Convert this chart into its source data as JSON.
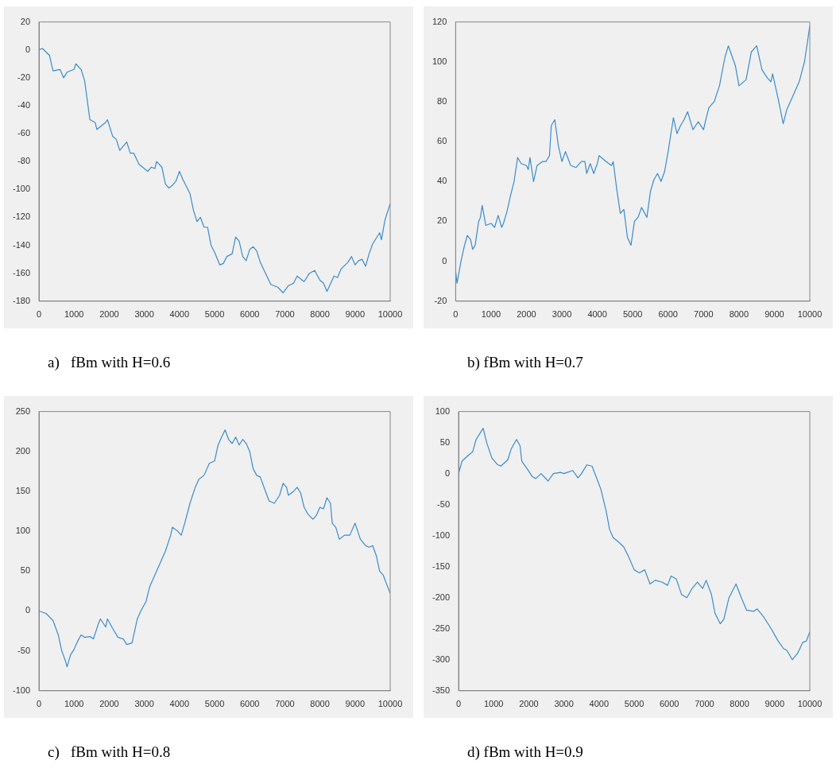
{
  "chart_data": [
    {
      "type": "line",
      "title": "a)   fBm with H=0.6",
      "color": "#3a8ccc",
      "xlim": [
        0,
        10000
      ],
      "xticks": [
        0,
        1000,
        2000,
        3000,
        4000,
        5000,
        6000,
        7000,
        8000,
        9000,
        10000
      ],
      "ylim": [
        -180,
        20
      ],
      "yticks": [
        -180,
        -160,
        -140,
        -120,
        -100,
        -80,
        -60,
        -40,
        -20,
        0,
        20
      ],
      "x": [
        0,
        100,
        300,
        400,
        600,
        700,
        800,
        1000,
        1050,
        1200,
        1300,
        1450,
        1600,
        1650,
        1900,
        1950,
        2100,
        2200,
        2300,
        2500,
        2600,
        2700,
        2850,
        2950,
        3100,
        3200,
        3300,
        3350,
        3500,
        3600,
        3700,
        3800,
        3900,
        4000,
        4100,
        4200,
        4300,
        4400,
        4500,
        4600,
        4700,
        4800,
        4900,
        5000,
        5150,
        5250,
        5350,
        5500,
        5600,
        5700,
        5800,
        5900,
        6000,
        6100,
        6200,
        6300,
        6450,
        6600,
        6800,
        6950,
        7100,
        7250,
        7350,
        7550,
        7700,
        7850,
        8000,
        8100,
        8200,
        8400,
        8500,
        8600,
        8800,
        8900,
        9000,
        9100,
        9200,
        9300,
        9400,
        9500,
        9700,
        9750,
        9850,
        10000
      ],
      "values": [
        0,
        1,
        -4,
        -15,
        -14,
        -20,
        -16,
        -14,
        -10,
        -14,
        -22,
        -50,
        -52,
        -57,
        -52,
        -50,
        -62,
        -64,
        -72,
        -66,
        -74,
        -74,
        -82,
        -84,
        -87,
        -84,
        -85,
        -80,
        -84,
        -96,
        -99,
        -97,
        -94,
        -87,
        -93,
        -98,
        -103,
        -115,
        -123,
        -120,
        -127,
        -127,
        -140,
        -145,
        -154,
        -153,
        -148,
        -146,
        -134,
        -137,
        -148,
        -151,
        -143,
        -141,
        -144,
        -152,
        -160,
        -168,
        -170,
        -174,
        -169,
        -167,
        -162,
        -166,
        -160,
        -158,
        -165,
        -167,
        -173,
        -162,
        -163,
        -157,
        -152,
        -148,
        -154,
        -151,
        -150,
        -155,
        -146,
        -139,
        -131,
        -136,
        -122,
        -110
      ]
    },
    {
      "type": "line",
      "title": "b) fBm with H=0.7",
      "color": "#3a8ccc",
      "xlim": [
        0,
        10000
      ],
      "xticks": [
        0,
        1000,
        2000,
        3000,
        4000,
        5000,
        6000,
        7000,
        8000,
        9000,
        10000
      ],
      "ylim": [
        -20,
        120
      ],
      "yticks": [
        -20,
        0,
        20,
        40,
        60,
        80,
        100,
        120
      ],
      "x": [
        0,
        40,
        150,
        250,
        330,
        420,
        480,
        550,
        650,
        700,
        750,
        850,
        1000,
        1100,
        1200,
        1300,
        1350,
        1450,
        1550,
        1650,
        1750,
        1850,
        2000,
        2050,
        2100,
        2200,
        2300,
        2450,
        2550,
        2650,
        2700,
        2800,
        2900,
        3000,
        3100,
        3250,
        3400,
        3550,
        3650,
        3700,
        3800,
        3900,
        4000,
        4050,
        4250,
        4400,
        4450,
        4550,
        4650,
        4750,
        4850,
        4950,
        5050,
        5150,
        5250,
        5400,
        5500,
        5600,
        5700,
        5800,
        5900,
        6000,
        6150,
        6250,
        6350,
        6450,
        6550,
        6700,
        6850,
        7000,
        7050,
        7150,
        7300,
        7450,
        7600,
        7700,
        7900,
        8000,
        8200,
        8350,
        8500,
        8650,
        8800,
        8900,
        8950,
        9100,
        9250,
        9350,
        9500,
        9700,
        9850,
        10000
      ],
      "values": [
        -5,
        -11,
        0,
        8,
        13,
        11,
        6,
        8,
        20,
        22,
        28,
        18,
        19,
        17,
        23,
        17,
        19,
        25,
        33,
        40,
        52,
        49,
        48,
        46,
        52,
        40,
        48,
        50,
        50,
        53,
        68,
        71,
        58,
        50,
        55,
        48,
        47,
        50,
        50,
        44,
        49,
        44,
        49,
        53,
        50,
        48,
        50,
        36,
        24,
        26,
        12,
        8,
        20,
        22,
        27,
        22,
        35,
        41,
        44,
        40,
        45,
        55,
        72,
        64,
        68,
        71,
        75,
        66,
        70,
        66,
        70,
        77,
        80,
        88,
        102,
        108,
        98,
        88,
        91,
        105,
        108,
        96,
        92,
        90,
        94,
        82,
        69,
        76,
        82,
        90,
        100,
        118
      ]
    },
    {
      "type": "line",
      "title": "c)   fBm with H=0.8",
      "color": "#3a8ccc",
      "xlim": [
        0,
        10000
      ],
      "xticks": [
        0,
        1000,
        2000,
        3000,
        4000,
        5000,
        6000,
        7000,
        8000,
        9000,
        10000
      ],
      "ylim": [
        -100,
        250
      ],
      "yticks": [
        -100,
        -50,
        0,
        50,
        100,
        150,
        200,
        250
      ],
      "x": [
        0,
        200,
        400,
        550,
        650,
        750,
        800,
        900,
        1000,
        1100,
        1200,
        1300,
        1450,
        1550,
        1700,
        1750,
        1900,
        1950,
        2100,
        2250,
        2400,
        2500,
        2650,
        2800,
        2900,
        3050,
        3150,
        3300,
        3450,
        3600,
        3750,
        3800,
        3950,
        4050,
        4150,
        4300,
        4450,
        4550,
        4700,
        4850,
        5000,
        5100,
        5200,
        5300,
        5400,
        5500,
        5600,
        5700,
        5800,
        5900,
        6000,
        6100,
        6200,
        6300,
        6450,
        6550,
        6700,
        6850,
        6950,
        7050,
        7100,
        7250,
        7350,
        7450,
        7550,
        7650,
        7800,
        7900,
        8000,
        8100,
        8200,
        8300,
        8350,
        8450,
        8550,
        8700,
        8850,
        9000,
        9150,
        9300,
        9400,
        9500,
        9600,
        9700,
        9800,
        10000
      ],
      "values": [
        0,
        -3,
        -12,
        -30,
        -50,
        -62,
        -70,
        -55,
        -48,
        -38,
        -30,
        -33,
        -32,
        -35,
        -15,
        -10,
        -20,
        -10,
        -22,
        -33,
        -35,
        -42,
        -40,
        -10,
        0,
        12,
        30,
        45,
        60,
        75,
        95,
        105,
        100,
        95,
        110,
        135,
        155,
        165,
        170,
        185,
        188,
        208,
        218,
        227,
        215,
        210,
        218,
        208,
        215,
        210,
        200,
        178,
        170,
        168,
        150,
        138,
        135,
        145,
        160,
        155,
        145,
        150,
        155,
        148,
        130,
        122,
        115,
        120,
        130,
        128,
        142,
        135,
        110,
        105,
        90,
        95,
        95,
        110,
        90,
        82,
        80,
        82,
        70,
        50,
        45,
        22
      ]
    },
    {
      "type": "line",
      "title": "d) fBm with H=0.9",
      "color": "#3a8ccc",
      "xlim": [
        0,
        10000
      ],
      "xticks": [
        0,
        1000,
        2000,
        3000,
        4000,
        5000,
        6000,
        7000,
        8000,
        9000,
        10000
      ],
      "ylim": [
        -350,
        100
      ],
      "yticks": [
        -350,
        -300,
        -250,
        -200,
        -150,
        -100,
        -50,
        0,
        50,
        100
      ],
      "x": [
        0,
        100,
        250,
        400,
        500,
        700,
        800,
        950,
        1100,
        1200,
        1400,
        1500,
        1650,
        1750,
        1800,
        1950,
        2100,
        2200,
        2350,
        2550,
        2700,
        2900,
        3000,
        3250,
        3400,
        3500,
        3650,
        3800,
        3950,
        4050,
        4200,
        4300,
        4400,
        4550,
        4700,
        4850,
        5000,
        5150,
        5300,
        5450,
        5600,
        5800,
        5950,
        6050,
        6200,
        6350,
        6500,
        6650,
        6800,
        6950,
        7050,
        7200,
        7300,
        7450,
        7550,
        7700,
        7900,
        8050,
        8200,
        8400,
        8500,
        8700,
        8900,
        9100,
        9250,
        9350,
        9500,
        9650,
        9800,
        9900,
        10000
      ],
      "values": [
        0,
        20,
        28,
        35,
        55,
        73,
        50,
        25,
        15,
        12,
        22,
        40,
        55,
        45,
        20,
        8,
        -5,
        -8,
        0,
        -12,
        0,
        2,
        0,
        5,
        -7,
        0,
        14,
        12,
        -10,
        -25,
        -60,
        -90,
        -103,
        -110,
        -118,
        -135,
        -155,
        -160,
        -155,
        -178,
        -172,
        -175,
        -180,
        -165,
        -170,
        -195,
        -200,
        -185,
        -175,
        -185,
        -172,
        -195,
        -225,
        -242,
        -235,
        -200,
        -178,
        -200,
        -220,
        -222,
        -218,
        -232,
        -250,
        -270,
        -282,
        -285,
        -300,
        -290,
        -272,
        -270,
        -255
      ]
    }
  ]
}
